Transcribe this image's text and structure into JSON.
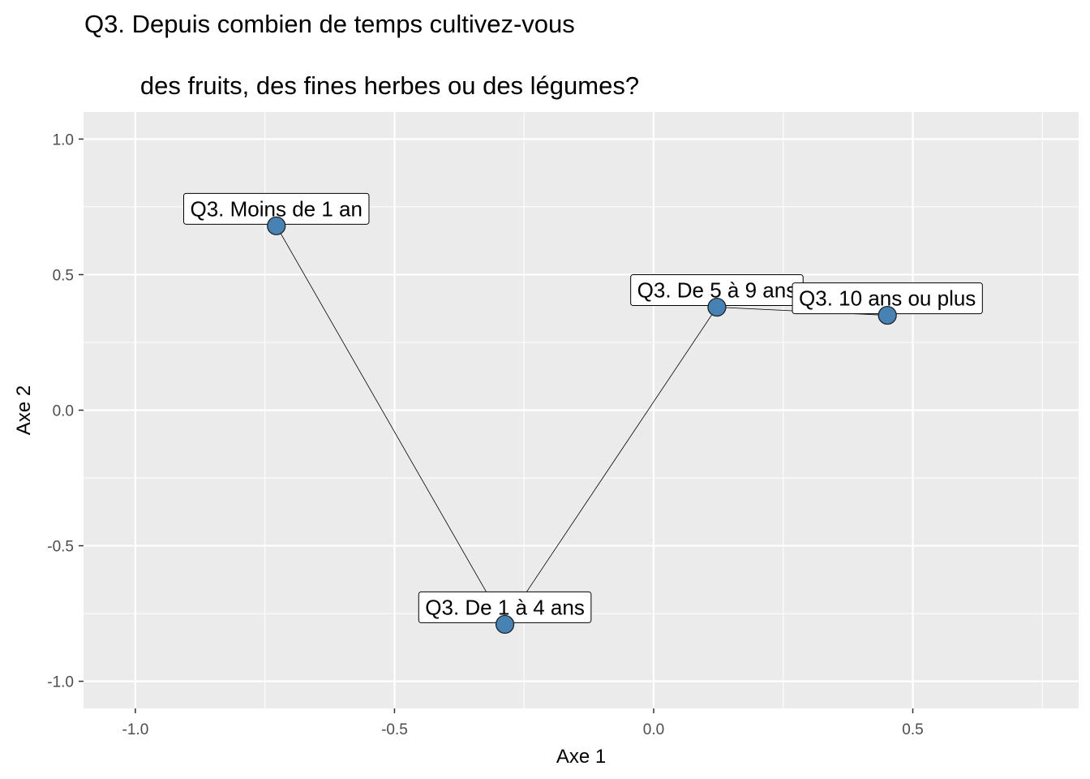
{
  "chart_data": {
    "type": "scatter",
    "title_lines": [
      "Q3. Depuis combien de temps cultivez-vous",
      "        des fruits, des fines herbes ou des légumes?"
    ],
    "xlabel": "Axe 1",
    "ylabel": "Axe 2",
    "xlim": [
      -1.1,
      0.82
    ],
    "ylim": [
      -1.1,
      1.1
    ],
    "x_ticks": [
      -1.0,
      -0.5,
      0.0,
      0.5
    ],
    "x_tick_labels": [
      "-1.0",
      "-0.5",
      "0.0",
      "0.5"
    ],
    "y_ticks": [
      -1.0,
      -0.5,
      0.0,
      0.5,
      1.0
    ],
    "y_tick_labels": [
      "-1.0",
      "-0.5",
      "0.0",
      "0.5",
      "1.0"
    ],
    "grid": true,
    "points": [
      {
        "label": "Q3. Moins de 1 an",
        "x": -0.728,
        "y": 0.68
      },
      {
        "label": "Q3. De 1 à 4 ans",
        "x": -0.287,
        "y": -0.79
      },
      {
        "label": "Q3. De 5 à 9 ans",
        "x": 0.122,
        "y": 0.38
      },
      {
        "label": "Q3. 10 ans ou plus",
        "x": 0.451,
        "y": 0.35
      }
    ],
    "connected": true,
    "colors": {
      "panel": "#ebebeb",
      "grid": "#ffffff",
      "point_fill": "#4682b4",
      "point_stroke": "#1a1a1a",
      "line": "#000000"
    }
  }
}
